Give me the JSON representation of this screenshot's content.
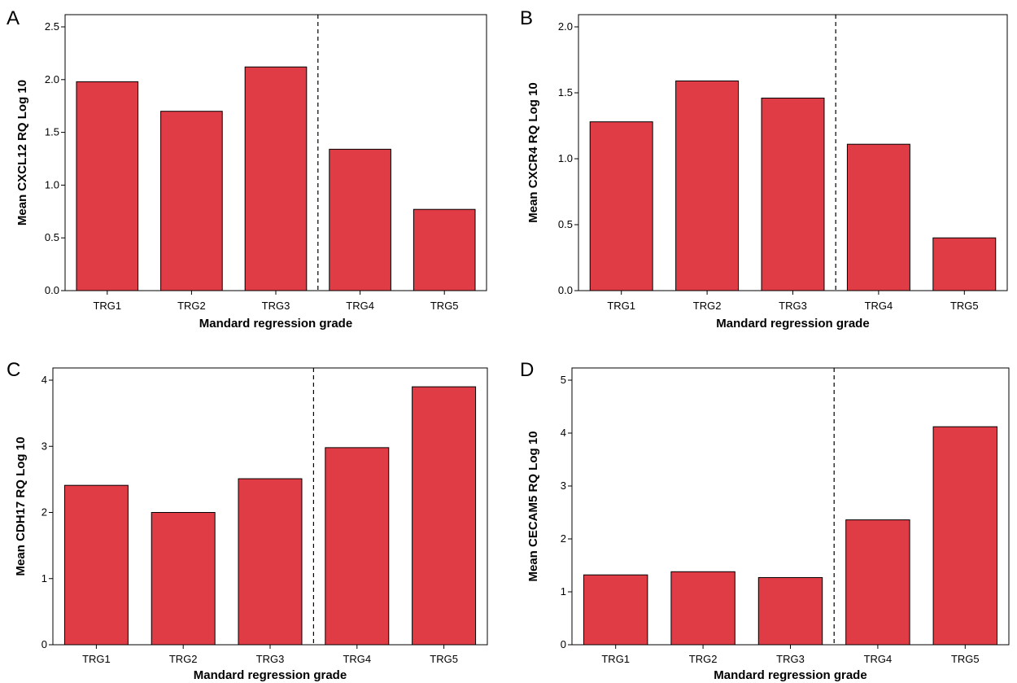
{
  "figure": {
    "bar_color": "#e03c46",
    "bar_edge_color": "#000000",
    "divider_style": "dashed"
  },
  "chart_data": [
    {
      "panel": "A",
      "type": "bar",
      "categories": [
        "TRG1",
        "TRG2",
        "TRG3",
        "TRG4",
        "TRG5"
      ],
      "values": [
        1.98,
        1.7,
        2.12,
        1.34,
        0.77
      ],
      "xlabel": "Mandard regression grade",
      "ylabel": "Mean CXCL12 RQ Log 10",
      "ylim": [
        0,
        2.5
      ],
      "yticks": [
        "0.0",
        "0.5",
        "1.0",
        "1.5",
        "2.0",
        "2.5"
      ],
      "divider_after": "TRG3",
      "grid": false,
      "legend": "none"
    },
    {
      "panel": "B",
      "type": "bar",
      "categories": [
        "TRG1",
        "TRG2",
        "TRG3",
        "TRG4",
        "TRG5"
      ],
      "values": [
        1.28,
        1.59,
        1.46,
        1.11,
        0.4
      ],
      "xlabel": "Mandard regression grade",
      "ylabel": "Mean CXCR4 RQ Log 10",
      "ylim": [
        0,
        2.0
      ],
      "yticks": [
        "0.0",
        "0.5",
        "1.0",
        "1.5",
        "2.0"
      ],
      "divider_after": "TRG3",
      "grid": false,
      "legend": "none"
    },
    {
      "panel": "C",
      "type": "bar",
      "categories": [
        "TRG1",
        "TRG2",
        "TRG3",
        "TRG4",
        "TRG5"
      ],
      "values": [
        2.41,
        2.0,
        2.51,
        2.98,
        3.9
      ],
      "xlabel": "Mandard regression grade",
      "ylabel": "Mean CDH17 RQ Log 10",
      "ylim": [
        0,
        4
      ],
      "yticks": [
        "0",
        "1",
        "2",
        "3",
        "4"
      ],
      "divider_after": "TRG3",
      "grid": false,
      "legend": "none"
    },
    {
      "panel": "D",
      "type": "bar",
      "categories": [
        "TRG1",
        "TRG2",
        "TRG3",
        "TRG4",
        "TRG5"
      ],
      "values": [
        1.32,
        1.38,
        1.27,
        2.36,
        4.12
      ],
      "xlabel": "Mandard regression grade",
      "ylabel": "Mean CECAM5 RQ Log 10",
      "ylim": [
        0,
        5
      ],
      "yticks": [
        "0",
        "1",
        "2",
        "3",
        "4",
        "5"
      ],
      "divider_after": "TRG3",
      "grid": false,
      "legend": "none"
    }
  ]
}
